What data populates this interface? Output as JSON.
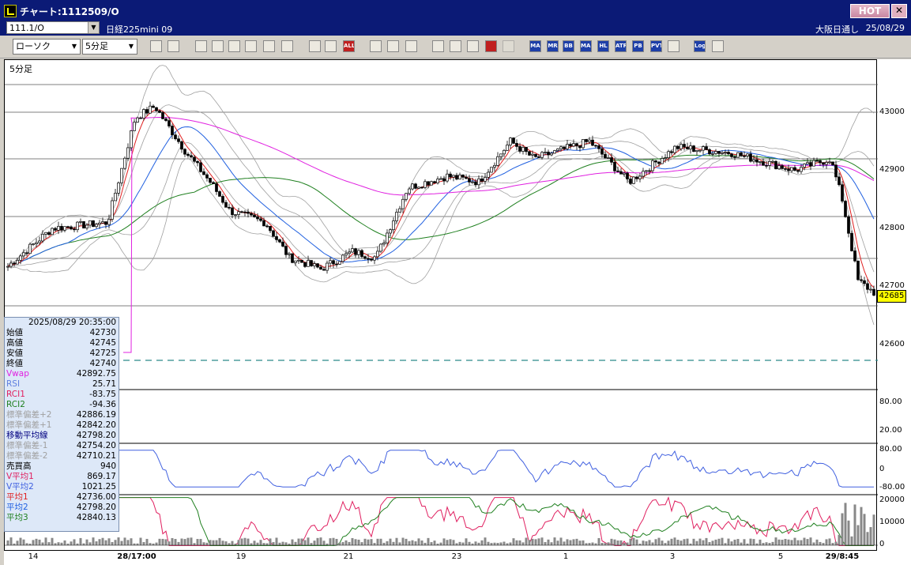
{
  "window": {
    "title": "チャート:1112509/O",
    "hot_label": "HOT",
    "close_glyph": "✕"
  },
  "symbol": {
    "code": "111.1/O",
    "name": "日経225mini 09",
    "exchange": "大阪日通し",
    "date": "25/08/29"
  },
  "toolbar": {
    "chart_type": "ローソク",
    "period": "5分足",
    "icons": [
      "zoom-icon",
      "crosshair-icon",
      "pen-icon",
      "trend-line-icon",
      "cursor-icon",
      "rewind-icon",
      "print-icon",
      "trash-icon",
      "compare-icon",
      "layout-icon",
      "all-button",
      "settings-icon",
      "tool-icon",
      "color-icon",
      "stamp-icon",
      "search-icon",
      "indicator-icon",
      "red-flag-icon",
      "disabled-icon",
      "ma-button",
      "mr-button",
      "bb-button",
      "mae-button",
      "hl-button",
      "atr-button",
      "pb-button",
      "pvt-button",
      "window-icon",
      "log-button",
      "exit-icon"
    ],
    "labels": {
      "all": "ALL",
      "ma": "MA",
      "mr": "MR",
      "bb": "BB",
      "mae": "MAE",
      "hl": "HL",
      "atr": "ATR",
      "pb": "PB",
      "pvt": "PVT",
      "log": "Log"
    }
  },
  "chart": {
    "panel_title": "5分足",
    "last_price": "42685",
    "y_labels": [
      "43000",
      "42900",
      "42800",
      "42700",
      "42600"
    ],
    "rsi_labels": [
      "80.00",
      "20.00"
    ],
    "rci_labels": [
      "80.00",
      "0",
      "-80.00"
    ],
    "vol_labels": [
      "20000",
      "10000",
      "0"
    ],
    "x_labels": [
      {
        "t": "14",
        "b": false
      },
      {
        "t": "28/17:00",
        "b": true
      },
      {
        "t": "19",
        "b": false
      },
      {
        "t": "21",
        "b": false
      },
      {
        "t": "23",
        "b": false
      },
      {
        "t": "1",
        "b": false
      },
      {
        "t": "3",
        "b": false
      },
      {
        "t": "5",
        "b": false
      },
      {
        "t": "29/8:45",
        "b": true
      }
    ],
    "colors": {
      "bb_band": "#a0a0a0",
      "ma_short": "#e02020",
      "ma_mid": "#2060e0",
      "ma_long": "#208020",
      "vwap": "#e020e0",
      "rsi": "#4060e0",
      "rci1": "#e02060",
      "rci2": "#208020"
    }
  },
  "info": {
    "datetime": "2025/08/29 20:35:00",
    "rows": [
      {
        "k": "始値",
        "v": "42730",
        "c": "#000000"
      },
      {
        "k": "高値",
        "v": "42745",
        "c": "#000000"
      },
      {
        "k": "安値",
        "v": "42725",
        "c": "#000000"
      },
      {
        "k": "終値",
        "v": "42740",
        "c": "#000000"
      },
      {
        "k": "Vwap",
        "v": "42892.75",
        "c": "#e020e0"
      },
      {
        "k": "RSI",
        "v": "25.71",
        "c": "#6080e0"
      },
      {
        "k": "RCI1",
        "v": "-83.75",
        "c": "#e02060"
      },
      {
        "k": "RCI2",
        "v": "-94.36",
        "c": "#208020"
      },
      {
        "k": "標準偏差+2",
        "v": "42886.19",
        "c": "#a0a0a0"
      },
      {
        "k": "標準偏差+1",
        "v": "42842.20",
        "c": "#a0a0a0"
      },
      {
        "k": "移動平均線",
        "v": "42798.20",
        "c": "#000080"
      },
      {
        "k": "標準偏差-1",
        "v": "42754.20",
        "c": "#a0a0a0"
      },
      {
        "k": "標準偏差-2",
        "v": "42710.21",
        "c": "#a0a0a0"
      },
      {
        "k": "売買高",
        "v": "940",
        "c": "#000000"
      },
      {
        "k": "V平均1",
        "v": "869.17",
        "c": "#e02060"
      },
      {
        "k": "V平均2",
        "v": "1021.25",
        "c": "#4060e0"
      },
      {
        "k": "平均1",
        "v": "42736.00",
        "c": "#e02020"
      },
      {
        "k": "平均2",
        "v": "42798.20",
        "c": "#2060e0"
      },
      {
        "k": "平均3",
        "v": "42840.13",
        "c": "#208020"
      }
    ]
  }
}
